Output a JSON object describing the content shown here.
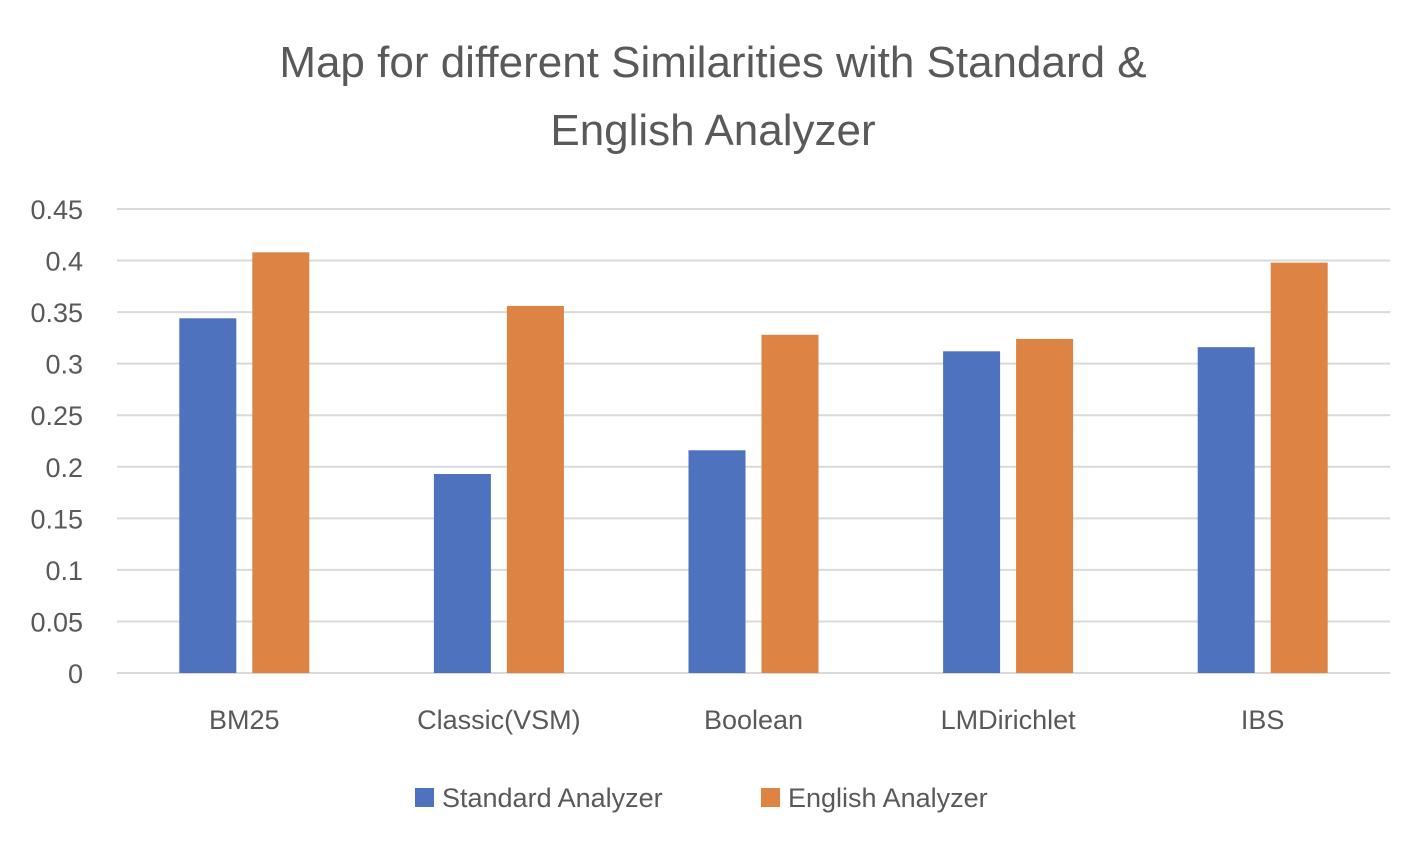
{
  "chart_data": {
    "type": "bar",
    "title_lines": [
      "Map for different Similarities with Standard &",
      "English Analyzer"
    ],
    "categories": [
      "BM25",
      "Classic(VSM)",
      "Boolean",
      "LMDirichlet",
      "IBS"
    ],
    "series": [
      {
        "name": "Standard Analyzer",
        "color": "#4f72be",
        "values": [
          0.344,
          0.193,
          0.216,
          0.312,
          0.316
        ]
      },
      {
        "name": "English Analyzer",
        "color": "#dd8344",
        "values": [
          0.408,
          0.356,
          0.328,
          0.324,
          0.398
        ]
      }
    ],
    "y_ticks": [
      "0",
      "0.05",
      "0.1",
      "0.15",
      "0.2",
      "0.25",
      "0.3",
      "0.35",
      "0.4",
      "0.45"
    ],
    "ylim": [
      0,
      0.45
    ],
    "grid": true,
    "legend_position": "bottom"
  }
}
